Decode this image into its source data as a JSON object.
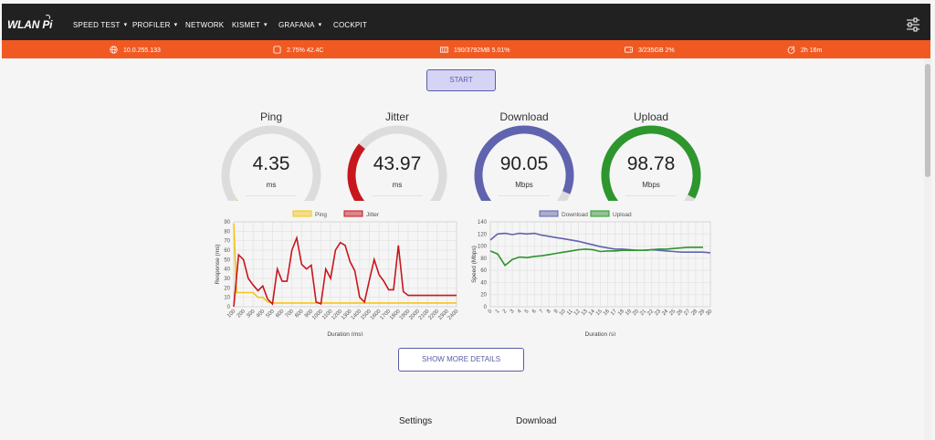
{
  "app": {
    "logo_text": "WLAN Pi"
  },
  "nav": [
    {
      "label": "SPEED TEST",
      "dropdown": true
    },
    {
      "label": "PROFILER",
      "dropdown": true
    },
    {
      "label": "NETWORK",
      "dropdown": false
    },
    {
      "label": "KISMET",
      "dropdown": true
    },
    {
      "label": "GRAFANA",
      "dropdown": true
    },
    {
      "label": "COCKPIT",
      "dropdown": false
    }
  ],
  "status": {
    "ip": "10.0.255.133",
    "cpu": "2.75% 42.4C",
    "memory": "190/3792MB 5.01%",
    "disk": "3/235GB 2%",
    "uptime": "2h 16m"
  },
  "start_label": "START",
  "gauges": [
    {
      "title": "Ping",
      "value": "4.35",
      "unit": "ms",
      "fraction": 0.05,
      "color": "#f5c518"
    },
    {
      "title": "Jitter",
      "value": "43.97",
      "unit": "ms",
      "fraction": 0.32,
      "color": "#c8161d"
    },
    {
      "title": "Download",
      "value": "90.05",
      "unit": "Mbps",
      "fraction": 0.9,
      "color": "#6063ad"
    },
    {
      "title": "Upload",
      "value": "98.78",
      "unit": "Mbps",
      "fraction": 0.92,
      "color": "#2d962d"
    }
  ],
  "more_label": "SHOW MORE DETAILS",
  "bottom_tabs": [
    "Settings",
    "Download"
  ],
  "chart_data": [
    {
      "type": "line",
      "xlabel": "Duration (ms)",
      "ylabel": "Response (ms)",
      "xlim": [
        100,
        2400
      ],
      "ylim": [
        0,
        90
      ],
      "yticks": [
        0,
        10,
        20,
        30,
        40,
        50,
        60,
        70,
        80,
        90
      ],
      "xticks": [
        100,
        200,
        300,
        400,
        500,
        600,
        700,
        800,
        900,
        1000,
        1100,
        1200,
        1300,
        1400,
        1500,
        1600,
        1700,
        1800,
        1900,
        2000,
        2100,
        2200,
        2300,
        2400
      ],
      "legend": "top",
      "series": [
        {
          "name": "Ping",
          "color": "#f5c518",
          "x": [
            100,
            130,
            200,
            250,
            300,
            350,
            400,
            450,
            500,
            550,
            600,
            2400
          ],
          "y": [
            88,
            15,
            15,
            15,
            15,
            10,
            10,
            5,
            4,
            4,
            4,
            4
          ]
        },
        {
          "name": "Jitter",
          "color": "#c8161d",
          "x": [
            100,
            150,
            200,
            250,
            300,
            350,
            400,
            450,
            500,
            550,
            600,
            650,
            700,
            750,
            800,
            850,
            900,
            950,
            1000,
            1050,
            1100,
            1150,
            1200,
            1250,
            1300,
            1350,
            1400,
            1450,
            1500,
            1550,
            1600,
            1650,
            1700,
            1750,
            1800,
            1850,
            1900,
            1950,
            2000,
            2050,
            2100,
            2150,
            2200,
            2250,
            2300,
            2350,
            2400
          ],
          "y": [
            0,
            55,
            50,
            30,
            23,
            17,
            22,
            8,
            3,
            40,
            27,
            27,
            60,
            73,
            45,
            40,
            44,
            5,
            3,
            40,
            30,
            60,
            68,
            65,
            48,
            38,
            10,
            5,
            28,
            50,
            34,
            27,
            18,
            18,
            65,
            16,
            12,
            12,
            12,
            12,
            12,
            12,
            12,
            12,
            12,
            12,
            12
          ]
        }
      ]
    },
    {
      "type": "line",
      "xlabel": "Duration (s)",
      "ylabel": "Speed (Mbps)",
      "xlim": [
        0,
        30
      ],
      "ylim": [
        0,
        140
      ],
      "yticks": [
        0,
        20,
        40,
        60,
        80,
        100,
        120,
        140
      ],
      "xticks": [
        0,
        1,
        2,
        3,
        4,
        5,
        6,
        7,
        8,
        9,
        10,
        11,
        12,
        13,
        14,
        15,
        16,
        17,
        18,
        19,
        20,
        21,
        22,
        23,
        24,
        25,
        26,
        27,
        28,
        29,
        30
      ],
      "legend": "top",
      "series": [
        {
          "name": "Download",
          "color": "#6063ad",
          "x": [
            0,
            1,
            2,
            3,
            4,
            5,
            6,
            7,
            8,
            9,
            10,
            11,
            12,
            13,
            14,
            15,
            16,
            17,
            18,
            19,
            20,
            21,
            22,
            23,
            24,
            25,
            26,
            27,
            28,
            29,
            30
          ],
          "y": [
            110,
            120,
            121,
            119,
            121,
            120,
            121,
            118,
            116,
            114,
            112,
            110,
            108,
            105,
            102,
            99,
            97,
            95,
            95,
            94,
            93,
            93,
            94,
            93,
            92,
            91,
            90,
            90,
            90,
            90,
            89
          ]
        },
        {
          "name": "Upload",
          "color": "#2d962d",
          "x": [
            0,
            1,
            2,
            3,
            4,
            5,
            6,
            7,
            8,
            9,
            10,
            11,
            12,
            13,
            14,
            15,
            16,
            17,
            18,
            19,
            20,
            21,
            22,
            23,
            24,
            25,
            26,
            27,
            28,
            29
          ],
          "y": [
            92,
            87,
            68,
            78,
            82,
            81,
            83,
            84,
            86,
            88,
            90,
            92,
            94,
            95,
            94,
            91,
            92,
            92,
            93,
            93,
            93,
            93,
            94,
            95,
            95,
            96,
            97,
            98,
            98,
            98
          ]
        }
      ]
    }
  ]
}
